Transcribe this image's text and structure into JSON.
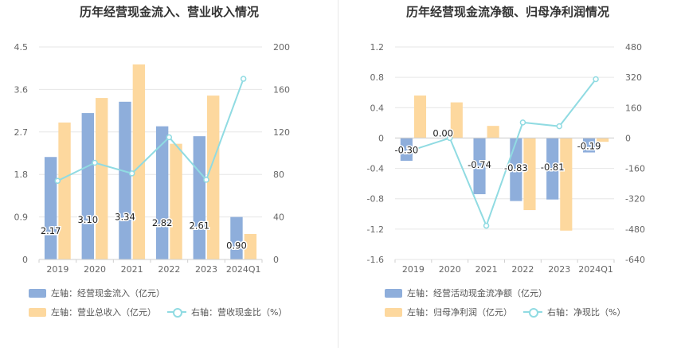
{
  "chart_data": [
    {
      "type": "bar",
      "title": "历年经营现金流入、营业收入情况",
      "categories": [
        "2019",
        "2020",
        "2021",
        "2022",
        "2023",
        "2024Q1"
      ],
      "y_left": {
        "min": 0,
        "max": 4.5,
        "ticks": [
          "0",
          "0.9",
          "1.8",
          "2.7",
          "3.6",
          "4.5"
        ]
      },
      "y_right": {
        "min": 0,
        "max": 200,
        "ticks": [
          "0",
          "40",
          "80",
          "120",
          "160",
          "200"
        ]
      },
      "series": [
        {
          "name": "左轴：经营现金流入（亿元）",
          "axis": "left",
          "kind": "bar",
          "color": "#8eaedb",
          "values": [
            2.17,
            3.1,
            3.34,
            2.82,
            2.61,
            0.9
          ],
          "labels": [
            "2.17",
            "3.10",
            "3.34",
            "2.82",
            "2.61",
            "0.90"
          ]
        },
        {
          "name": "左轴：营业总收入（亿元）",
          "axis": "left",
          "kind": "bar",
          "color": "#fdd89e",
          "values": [
            2.9,
            3.42,
            4.13,
            2.45,
            3.47,
            0.54
          ]
        },
        {
          "name": "右轴：营收现金比（%）",
          "axis": "right",
          "kind": "line",
          "color": "#90dbe2",
          "values": [
            74,
            91,
            81,
            115,
            75,
            170
          ]
        }
      ],
      "grid": true
    },
    {
      "type": "bar",
      "title": "历年经营现金流净额、归母净利润情况",
      "categories": [
        "2019",
        "2020",
        "2021",
        "2022",
        "2023",
        "2024Q1"
      ],
      "y_left": {
        "min": -1.6,
        "max": 1.2,
        "ticks": [
          "-1.6",
          "-1.2",
          "-0.8",
          "-0.4",
          "0",
          "0.4",
          "0.8",
          "1.2"
        ]
      },
      "y_right": {
        "min": -640,
        "max": 480,
        "ticks": [
          "-640",
          "-480",
          "-320",
          "-160",
          "0",
          "160",
          "320",
          "480"
        ]
      },
      "series": [
        {
          "name": "左轴：经营活动现金流净额（亿元）",
          "axis": "left",
          "kind": "bar",
          "color": "#8eaedb",
          "values": [
            -0.3,
            0.0,
            -0.74,
            -0.83,
            -0.81,
            -0.19
          ],
          "labels": [
            "-0.30",
            "0.00",
            "-0.74",
            "-0.83",
            "-0.81",
            "-0.19"
          ]
        },
        {
          "name": "左轴：归母净利润（亿元）",
          "axis": "left",
          "kind": "bar",
          "color": "#fdd89e",
          "values": [
            0.56,
            0.47,
            0.16,
            -0.95,
            -1.22,
            -0.05
          ]
        },
        {
          "name": "右轴：净现比（%）",
          "axis": "right",
          "kind": "line",
          "color": "#90dbe2",
          "values": [
            -62,
            0,
            -462,
            82,
            62,
            310
          ]
        }
      ],
      "grid": true
    }
  ]
}
